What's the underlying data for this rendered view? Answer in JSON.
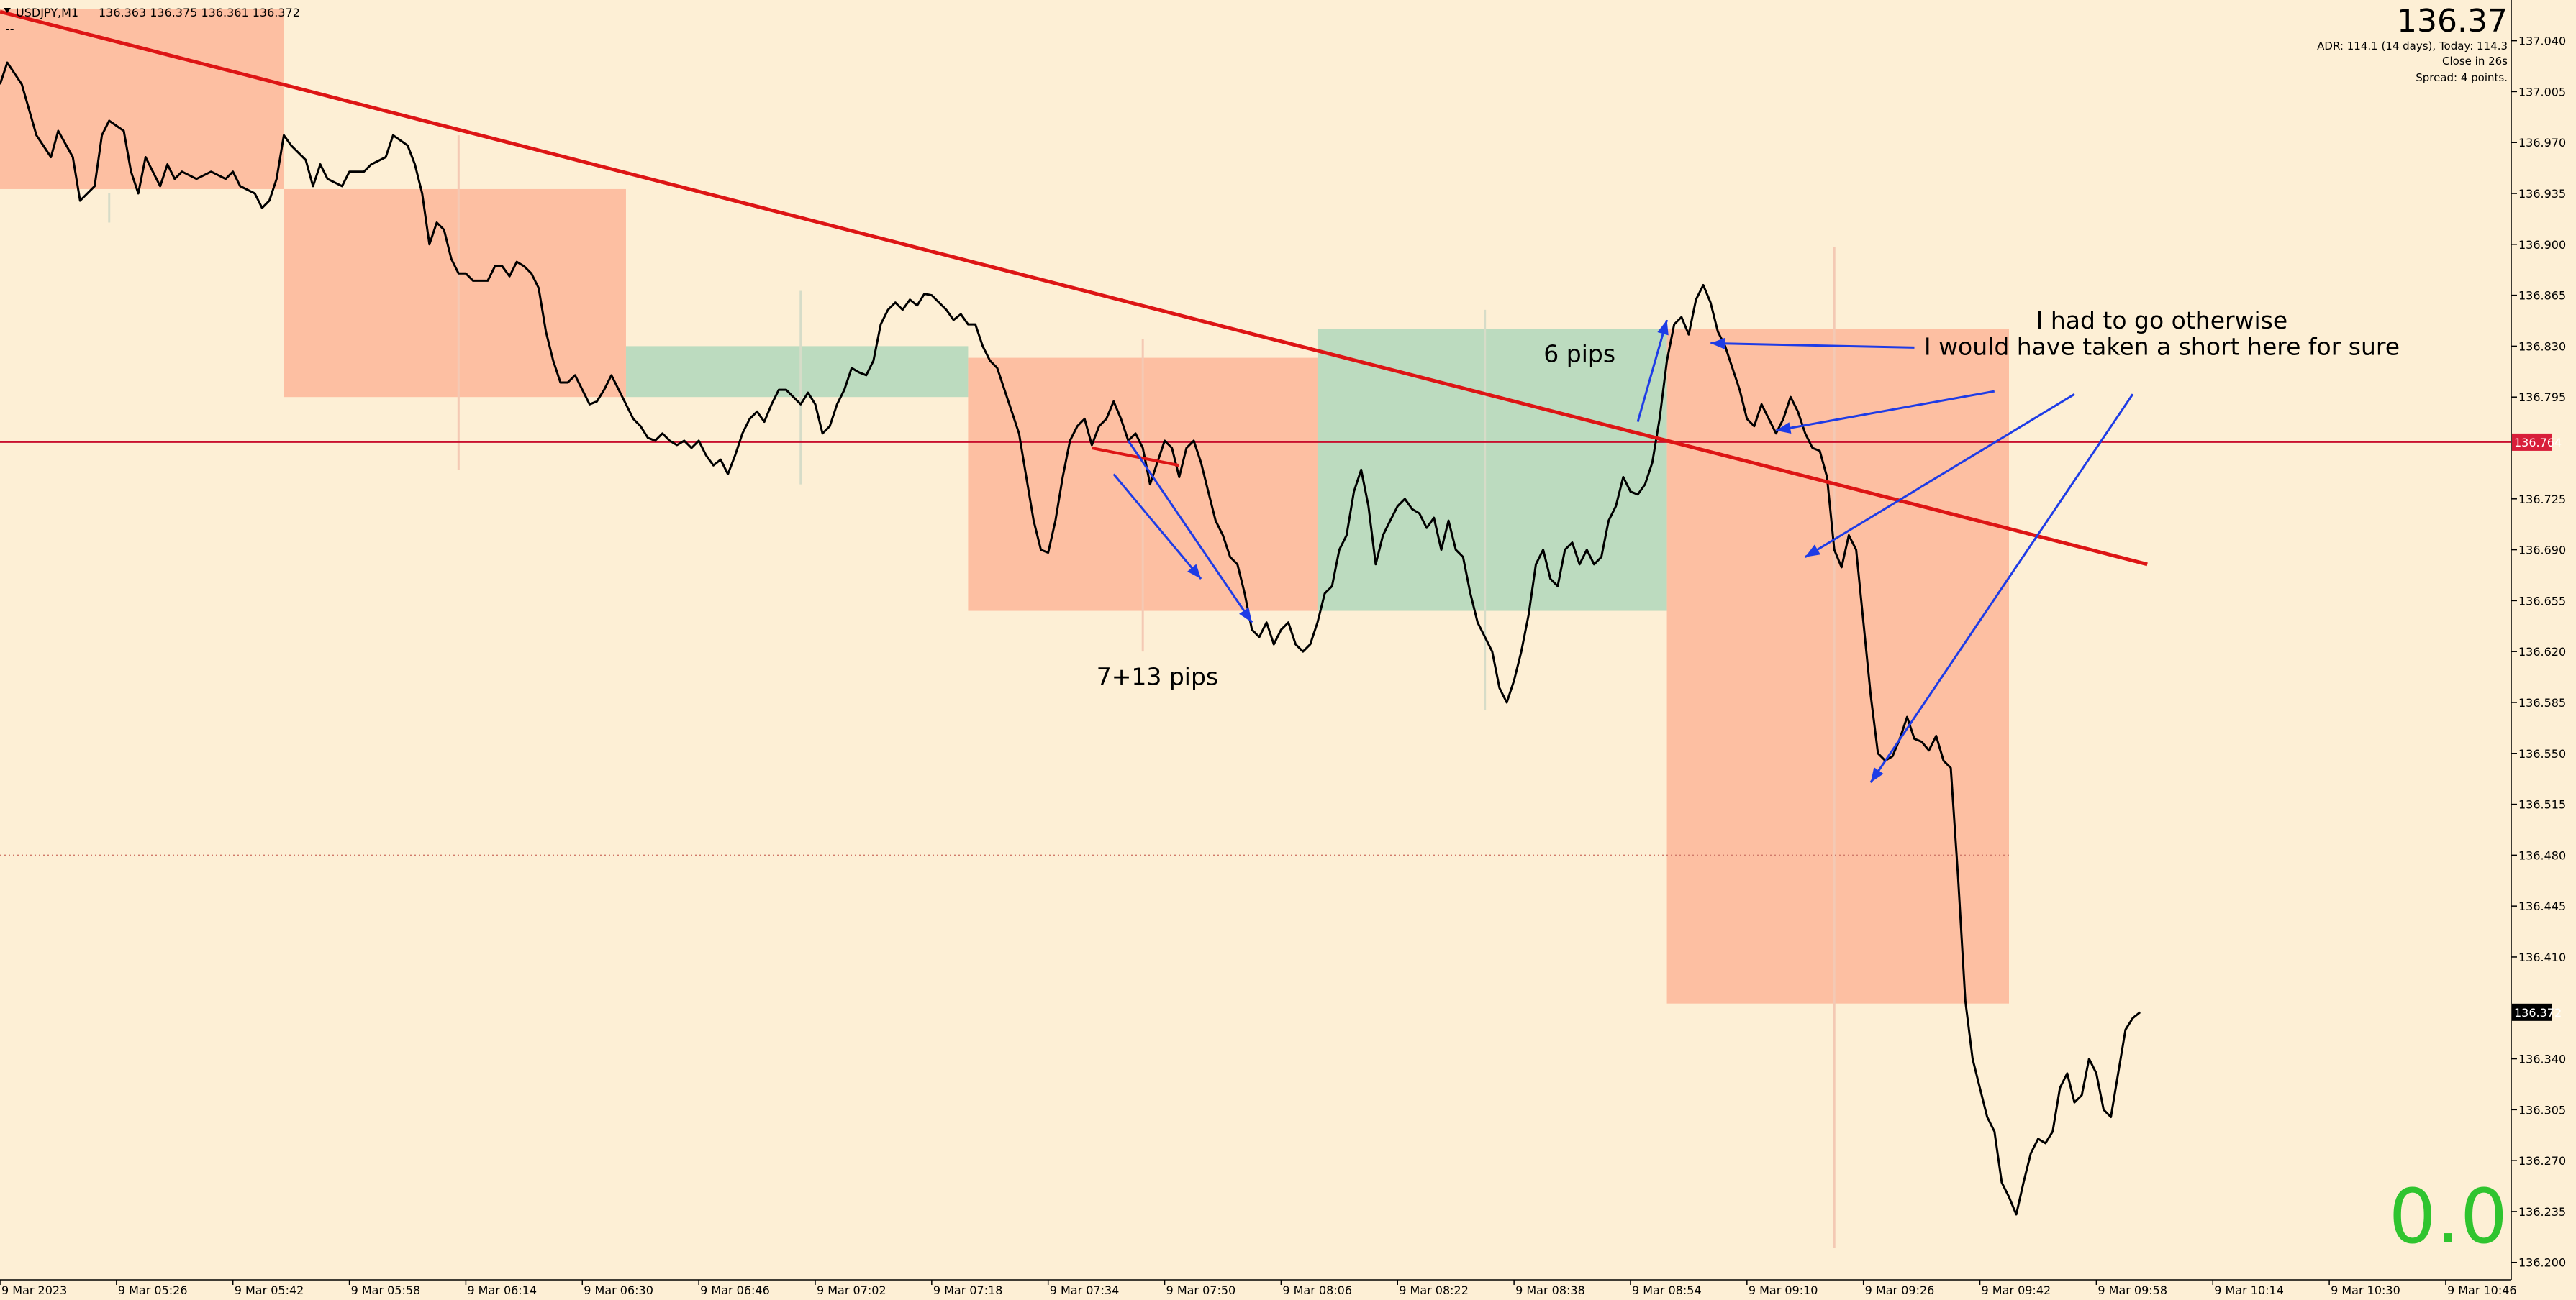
{
  "header": {
    "symbol": "USDJPY,M1",
    "ohlc": "136.363 136.375 136.361 136.372",
    "sub_line": "--"
  },
  "info_panel": {
    "price": "136.37",
    "adr": "ADR: 114.1 (14 days), Today: 114.3",
    "close_in": "Close in 26s",
    "spread": "Spread: 4 points."
  },
  "big_number": "0.0",
  "colors": {
    "background": "#fdefd5",
    "sell_zone": "#fdbfa2",
    "buy_zone": "#bcdbbf",
    "price_line": "#000000",
    "trendline": "#dd1515",
    "arrows": "#1e3ce6",
    "big_number": "#2fc42f",
    "level_tag": "#d81e3a"
  },
  "chart_data": {
    "type": "line",
    "symbol": "USDJPY",
    "timeframe": "M1",
    "x_tick_labels": [
      "9 Mar 2023",
      "9 Mar 05:26",
      "9 Mar 05:42",
      "9 Mar 05:58",
      "9 Mar 06:14",
      "9 Mar 06:30",
      "9 Mar 06:46",
      "9 Mar 07:02",
      "9 Mar 07:18",
      "9 Mar 07:34",
      "9 Mar 07:50",
      "9 Mar 08:06",
      "9 Mar 08:22",
      "9 Mar 08:38",
      "9 Mar 08:54",
      "9 Mar 09:10",
      "9 Mar 09:26",
      "9 Mar 09:42",
      "9 Mar 09:58",
      "9 Mar 10:14",
      "9 Mar 10:30",
      "9 Mar 10:46"
    ],
    "y_tick_labels": [
      "137.040",
      "137.005",
      "136.970",
      "136.935",
      "136.900",
      "136.865",
      "136.830",
      "136.795",
      "136.725",
      "136.690",
      "136.655",
      "136.620",
      "136.585",
      "136.550",
      "136.515",
      "136.480",
      "136.445",
      "136.410",
      "136.340",
      "136.305",
      "136.270",
      "136.235",
      "136.200"
    ],
    "ylim": [
      136.188,
      137.068
    ],
    "x_range_bars": [
      0,
      345
    ],
    "grid": false,
    "price_series": [
      [
        0,
        137.01
      ],
      [
        1,
        137.025
      ],
      [
        3,
        137.01
      ],
      [
        5,
        136.975
      ],
      [
        7,
        136.96
      ],
      [
        8,
        136.978
      ],
      [
        10,
        136.96
      ],
      [
        11,
        136.93
      ],
      [
        12,
        136.935
      ],
      [
        13,
        136.94
      ],
      [
        14,
        136.975
      ],
      [
        15,
        136.985
      ],
      [
        17,
        136.978
      ],
      [
        18,
        136.95
      ],
      [
        19,
        136.935
      ],
      [
        20,
        136.96
      ],
      [
        21,
        136.95
      ],
      [
        22,
        136.94
      ],
      [
        23,
        136.955
      ],
      [
        24,
        136.945
      ],
      [
        25,
        136.95
      ],
      [
        27,
        136.945
      ],
      [
        29,
        136.95
      ],
      [
        31,
        136.945
      ],
      [
        32,
        136.95
      ],
      [
        33,
        136.94
      ],
      [
        35,
        136.935
      ],
      [
        36,
        136.925
      ],
      [
        37,
        136.93
      ],
      [
        38,
        136.945
      ],
      [
        39,
        136.975
      ],
      [
        40,
        136.968
      ],
      [
        42,
        136.958
      ],
      [
        43,
        136.94
      ],
      [
        44,
        136.955
      ],
      [
        45,
        136.945
      ],
      [
        47,
        136.94
      ],
      [
        48,
        136.95
      ],
      [
        50,
        136.95
      ],
      [
        51,
        136.955
      ],
      [
        53,
        136.96
      ],
      [
        54,
        136.975
      ],
      [
        56,
        136.968
      ],
      [
        57,
        136.955
      ],
      [
        58,
        136.935
      ],
      [
        59,
        136.9
      ],
      [
        60,
        136.915
      ],
      [
        61,
        136.91
      ],
      [
        62,
        136.89
      ],
      [
        63,
        136.88
      ],
      [
        64,
        136.88
      ],
      [
        65,
        136.875
      ],
      [
        67,
        136.875
      ],
      [
        68,
        136.885
      ],
      [
        69,
        136.885
      ],
      [
        70,
        136.878
      ],
      [
        71,
        136.888
      ],
      [
        72,
        136.885
      ],
      [
        73,
        136.88
      ],
      [
        74,
        136.87
      ],
      [
        75,
        136.84
      ],
      [
        76,
        136.82
      ],
      [
        77,
        136.805
      ],
      [
        78,
        136.805
      ],
      [
        79,
        136.81
      ],
      [
        80,
        136.8
      ],
      [
        81,
        136.79
      ],
      [
        82,
        136.792
      ],
      [
        83,
        136.8
      ],
      [
        84,
        136.81
      ],
      [
        85,
        136.8
      ],
      [
        86,
        136.79
      ],
      [
        87,
        136.78
      ],
      [
        88,
        136.775
      ],
      [
        89,
        136.767
      ],
      [
        90,
        136.765
      ],
      [
        91,
        136.77
      ],
      [
        92,
        136.765
      ],
      [
        93,
        136.762
      ],
      [
        94,
        136.765
      ],
      [
        95,
        136.76
      ],
      [
        96,
        136.765
      ],
      [
        97,
        136.755
      ],
      [
        98,
        136.748
      ],
      [
        99,
        136.752
      ],
      [
        100,
        136.742
      ],
      [
        101,
        136.755
      ],
      [
        102,
        136.77
      ],
      [
        103,
        136.78
      ],
      [
        104,
        136.785
      ],
      [
        105,
        136.778
      ],
      [
        106,
        136.79
      ],
      [
        107,
        136.8
      ],
      [
        108,
        136.8
      ],
      [
        109,
        136.795
      ],
      [
        110,
        136.79
      ],
      [
        111,
        136.798
      ],
      [
        112,
        136.79
      ],
      [
        113,
        136.77
      ],
      [
        114,
        136.775
      ],
      [
        115,
        136.79
      ],
      [
        116,
        136.8
      ],
      [
        117,
        136.815
      ],
      [
        118,
        136.812
      ],
      [
        119,
        136.81
      ],
      [
        120,
        136.82
      ],
      [
        121,
        136.845
      ],
      [
        122,
        136.855
      ],
      [
        123,
        136.86
      ],
      [
        124,
        136.855
      ],
      [
        125,
        136.862
      ],
      [
        126,
        136.858
      ],
      [
        127,
        136.866
      ],
      [
        128,
        136.865
      ],
      [
        129,
        136.86
      ],
      [
        130,
        136.855
      ],
      [
        131,
        136.848
      ],
      [
        132,
        136.852
      ],
      [
        133,
        136.845
      ],
      [
        134,
        136.845
      ],
      [
        135,
        136.83
      ],
      [
        136,
        136.82
      ],
      [
        137,
        136.815
      ],
      [
        138,
        136.8
      ],
      [
        139,
        136.785
      ],
      [
        140,
        136.77
      ],
      [
        141,
        136.74
      ],
      [
        142,
        136.71
      ],
      [
        143,
        136.69
      ],
      [
        144,
        136.688
      ],
      [
        145,
        136.71
      ],
      [
        146,
        136.74
      ],
      [
        147,
        136.765
      ],
      [
        148,
        136.775
      ],
      [
        149,
        136.78
      ],
      [
        150,
        136.762
      ],
      [
        151,
        136.775
      ],
      [
        152,
        136.78
      ],
      [
        153,
        136.792
      ],
      [
        154,
        136.78
      ],
      [
        155,
        136.765
      ],
      [
        156,
        136.77
      ],
      [
        157,
        136.76
      ],
      [
        158,
        136.735
      ],
      [
        159,
        136.75
      ],
      [
        160,
        136.765
      ],
      [
        161,
        136.76
      ],
      [
        162,
        136.74
      ],
      [
        163,
        136.76
      ],
      [
        164,
        136.765
      ],
      [
        165,
        136.75
      ],
      [
        166,
        136.73
      ],
      [
        167,
        136.71
      ],
      [
        168,
        136.7
      ],
      [
        169,
        136.685
      ],
      [
        170,
        136.68
      ],
      [
        171,
        136.66
      ],
      [
        172,
        136.635
      ],
      [
        173,
        136.63
      ],
      [
        174,
        136.64
      ],
      [
        175,
        136.625
      ],
      [
        176,
        136.635
      ],
      [
        177,
        136.64
      ],
      [
        178,
        136.625
      ],
      [
        179,
        136.62
      ],
      [
        180,
        136.625
      ],
      [
        181,
        136.64
      ],
      [
        182,
        136.66
      ],
      [
        183,
        136.665
      ],
      [
        184,
        136.69
      ],
      [
        185,
        136.7
      ],
      [
        186,
        136.73
      ],
      [
        187,
        136.745
      ],
      [
        188,
        136.72
      ],
      [
        189,
        136.68
      ],
      [
        190,
        136.7
      ],
      [
        191,
        136.71
      ],
      [
        192,
        136.72
      ],
      [
        193,
        136.725
      ],
      [
        194,
        136.718
      ],
      [
        195,
        136.715
      ],
      [
        196,
        136.705
      ],
      [
        197,
        136.712
      ],
      [
        198,
        136.69
      ],
      [
        199,
        136.71
      ],
      [
        200,
        136.69
      ],
      [
        201,
        136.685
      ],
      [
        202,
        136.66
      ],
      [
        203,
        136.64
      ],
      [
        204,
        136.63
      ],
      [
        205,
        136.62
      ],
      [
        206,
        136.595
      ],
      [
        207,
        136.585
      ],
      [
        208,
        136.6
      ],
      [
        209,
        136.62
      ],
      [
        210,
        136.645
      ],
      [
        211,
        136.68
      ],
      [
        212,
        136.69
      ],
      [
        213,
        136.67
      ],
      [
        214,
        136.665
      ],
      [
        215,
        136.69
      ],
      [
        216,
        136.695
      ],
      [
        217,
        136.68
      ],
      [
        218,
        136.69
      ],
      [
        219,
        136.68
      ],
      [
        220,
        136.685
      ],
      [
        221,
        136.71
      ],
      [
        222,
        136.72
      ],
      [
        223,
        136.74
      ],
      [
        224,
        136.73
      ],
      [
        225,
        136.728
      ],
      [
        226,
        136.735
      ],
      [
        227,
        136.75
      ],
      [
        228,
        136.78
      ],
      [
        229,
        136.82
      ],
      [
        230,
        136.845
      ],
      [
        231,
        136.85
      ],
      [
        232,
        136.838
      ],
      [
        233,
        136.862
      ],
      [
        234,
        136.872
      ],
      [
        235,
        136.86
      ],
      [
        236,
        136.84
      ],
      [
        237,
        136.83
      ],
      [
        238,
        136.815
      ],
      [
        239,
        136.8
      ],
      [
        240,
        136.78
      ],
      [
        241,
        136.775
      ],
      [
        242,
        136.79
      ],
      [
        243,
        136.78
      ],
      [
        244,
        136.77
      ],
      [
        245,
        136.78
      ],
      [
        246,
        136.795
      ],
      [
        247,
        136.785
      ],
      [
        248,
        136.77
      ],
      [
        249,
        136.76
      ],
      [
        250,
        136.758
      ],
      [
        251,
        136.74
      ],
      [
        252,
        136.69
      ],
      [
        253,
        136.678
      ],
      [
        254,
        136.7
      ],
      [
        255,
        136.69
      ],
      [
        256,
        136.64
      ],
      [
        257,
        136.59
      ],
      [
        258,
        136.55
      ],
      [
        259,
        136.545
      ],
      [
        260,
        136.548
      ],
      [
        261,
        136.56
      ],
      [
        262,
        136.575
      ],
      [
        263,
        136.56
      ],
      [
        264,
        136.558
      ],
      [
        265,
        136.552
      ],
      [
        266,
        136.562
      ],
      [
        267,
        136.545
      ],
      [
        268,
        136.54
      ],
      [
        269,
        136.465
      ],
      [
        270,
        136.38
      ],
      [
        271,
        136.34
      ],
      [
        272,
        136.32
      ],
      [
        273,
        136.3
      ],
      [
        274,
        136.29
      ],
      [
        275,
        136.255
      ],
      [
        276,
        136.245
      ],
      [
        277,
        136.233
      ],
      [
        278,
        136.255
      ],
      [
        279,
        136.275
      ],
      [
        280,
        136.285
      ],
      [
        281,
        136.282
      ],
      [
        282,
        136.29
      ],
      [
        283,
        136.32
      ],
      [
        284,
        136.33
      ],
      [
        285,
        136.31
      ],
      [
        286,
        136.315
      ],
      [
        287,
        136.34
      ],
      [
        288,
        136.33
      ],
      [
        289,
        136.305
      ],
      [
        290,
        136.3
      ],
      [
        291,
        136.33
      ],
      [
        292,
        136.36
      ],
      [
        293,
        136.368
      ],
      [
        294,
        136.372
      ]
    ],
    "current_price": 136.372,
    "horizontal_level": 136.764,
    "dotted_level": 136.48,
    "zones": [
      {
        "kind": "sell",
        "from_bar": 0,
        "to_bar": 39,
        "top": 137.062,
        "bottom": 136.938
      },
      {
        "kind": "sell",
        "from_bar": 39,
        "to_bar": 86,
        "top": 136.938,
        "bottom": 136.795
      },
      {
        "kind": "buy",
        "from_bar": 86,
        "to_bar": 133,
        "top": 136.83,
        "bottom": 136.795
      },
      {
        "kind": "sell",
        "from_bar": 133,
        "to_bar": 181,
        "top": 136.822,
        "bottom": 136.648
      },
      {
        "kind": "buy",
        "from_bar": 181,
        "to_bar": 229,
        "top": 136.842,
        "bottom": 136.648
      },
      {
        "kind": "sell",
        "from_bar": 229,
        "to_bar": 276,
        "top": 136.842,
        "bottom": 136.378
      }
    ],
    "ghost_wicks": [
      {
        "bar": 15,
        "top": 136.935,
        "bottom": 136.915
      },
      {
        "bar": 63,
        "top": 136.975,
        "bottom": 136.745
      },
      {
        "bar": 110,
        "top": 136.868,
        "bottom": 136.735
      },
      {
        "bar": 157,
        "top": 136.835,
        "bottom": 136.62
      },
      {
        "bar": 204,
        "top": 136.855,
        "bottom": 136.58
      },
      {
        "bar": 252,
        "top": 136.898,
        "bottom": 136.21
      }
    ],
    "trendline": {
      "start": [
        0,
        137.06
      ],
      "end": [
        295,
        136.68
      ]
    },
    "annotations": [
      {
        "text": "7+13 pips",
        "bar": 159,
        "price": 136.597
      },
      {
        "text": "6 pips",
        "bar": 217,
        "price": 136.819
      },
      {
        "text": "I had to go otherwise",
        "bar": 297,
        "price": 136.842
      },
      {
        "text": "I would have taken a short here for sure",
        "bar": 297,
        "price": 136.824
      }
    ],
    "arrows": [
      {
        "from": [
          153,
          136.742
        ],
        "to": [
          165,
          136.67
        ]
      },
      {
        "from": [
          155,
          136.765
        ],
        "to": [
          172,
          136.64
        ]
      },
      {
        "from": [
          225,
          136.778
        ],
        "to": [
          229,
          136.848
        ]
      },
      {
        "from": [
          263,
          136.829
        ],
        "to": [
          235,
          136.832
        ]
      },
      {
        "from": [
          274,
          136.799
        ],
        "to": [
          244,
          136.772
        ]
      },
      {
        "from": [
          285,
          136.797
        ],
        "to": [
          248,
          136.685
        ]
      },
      {
        "from": [
          293,
          136.797
        ],
        "to": [
          257,
          136.53
        ]
      }
    ]
  }
}
